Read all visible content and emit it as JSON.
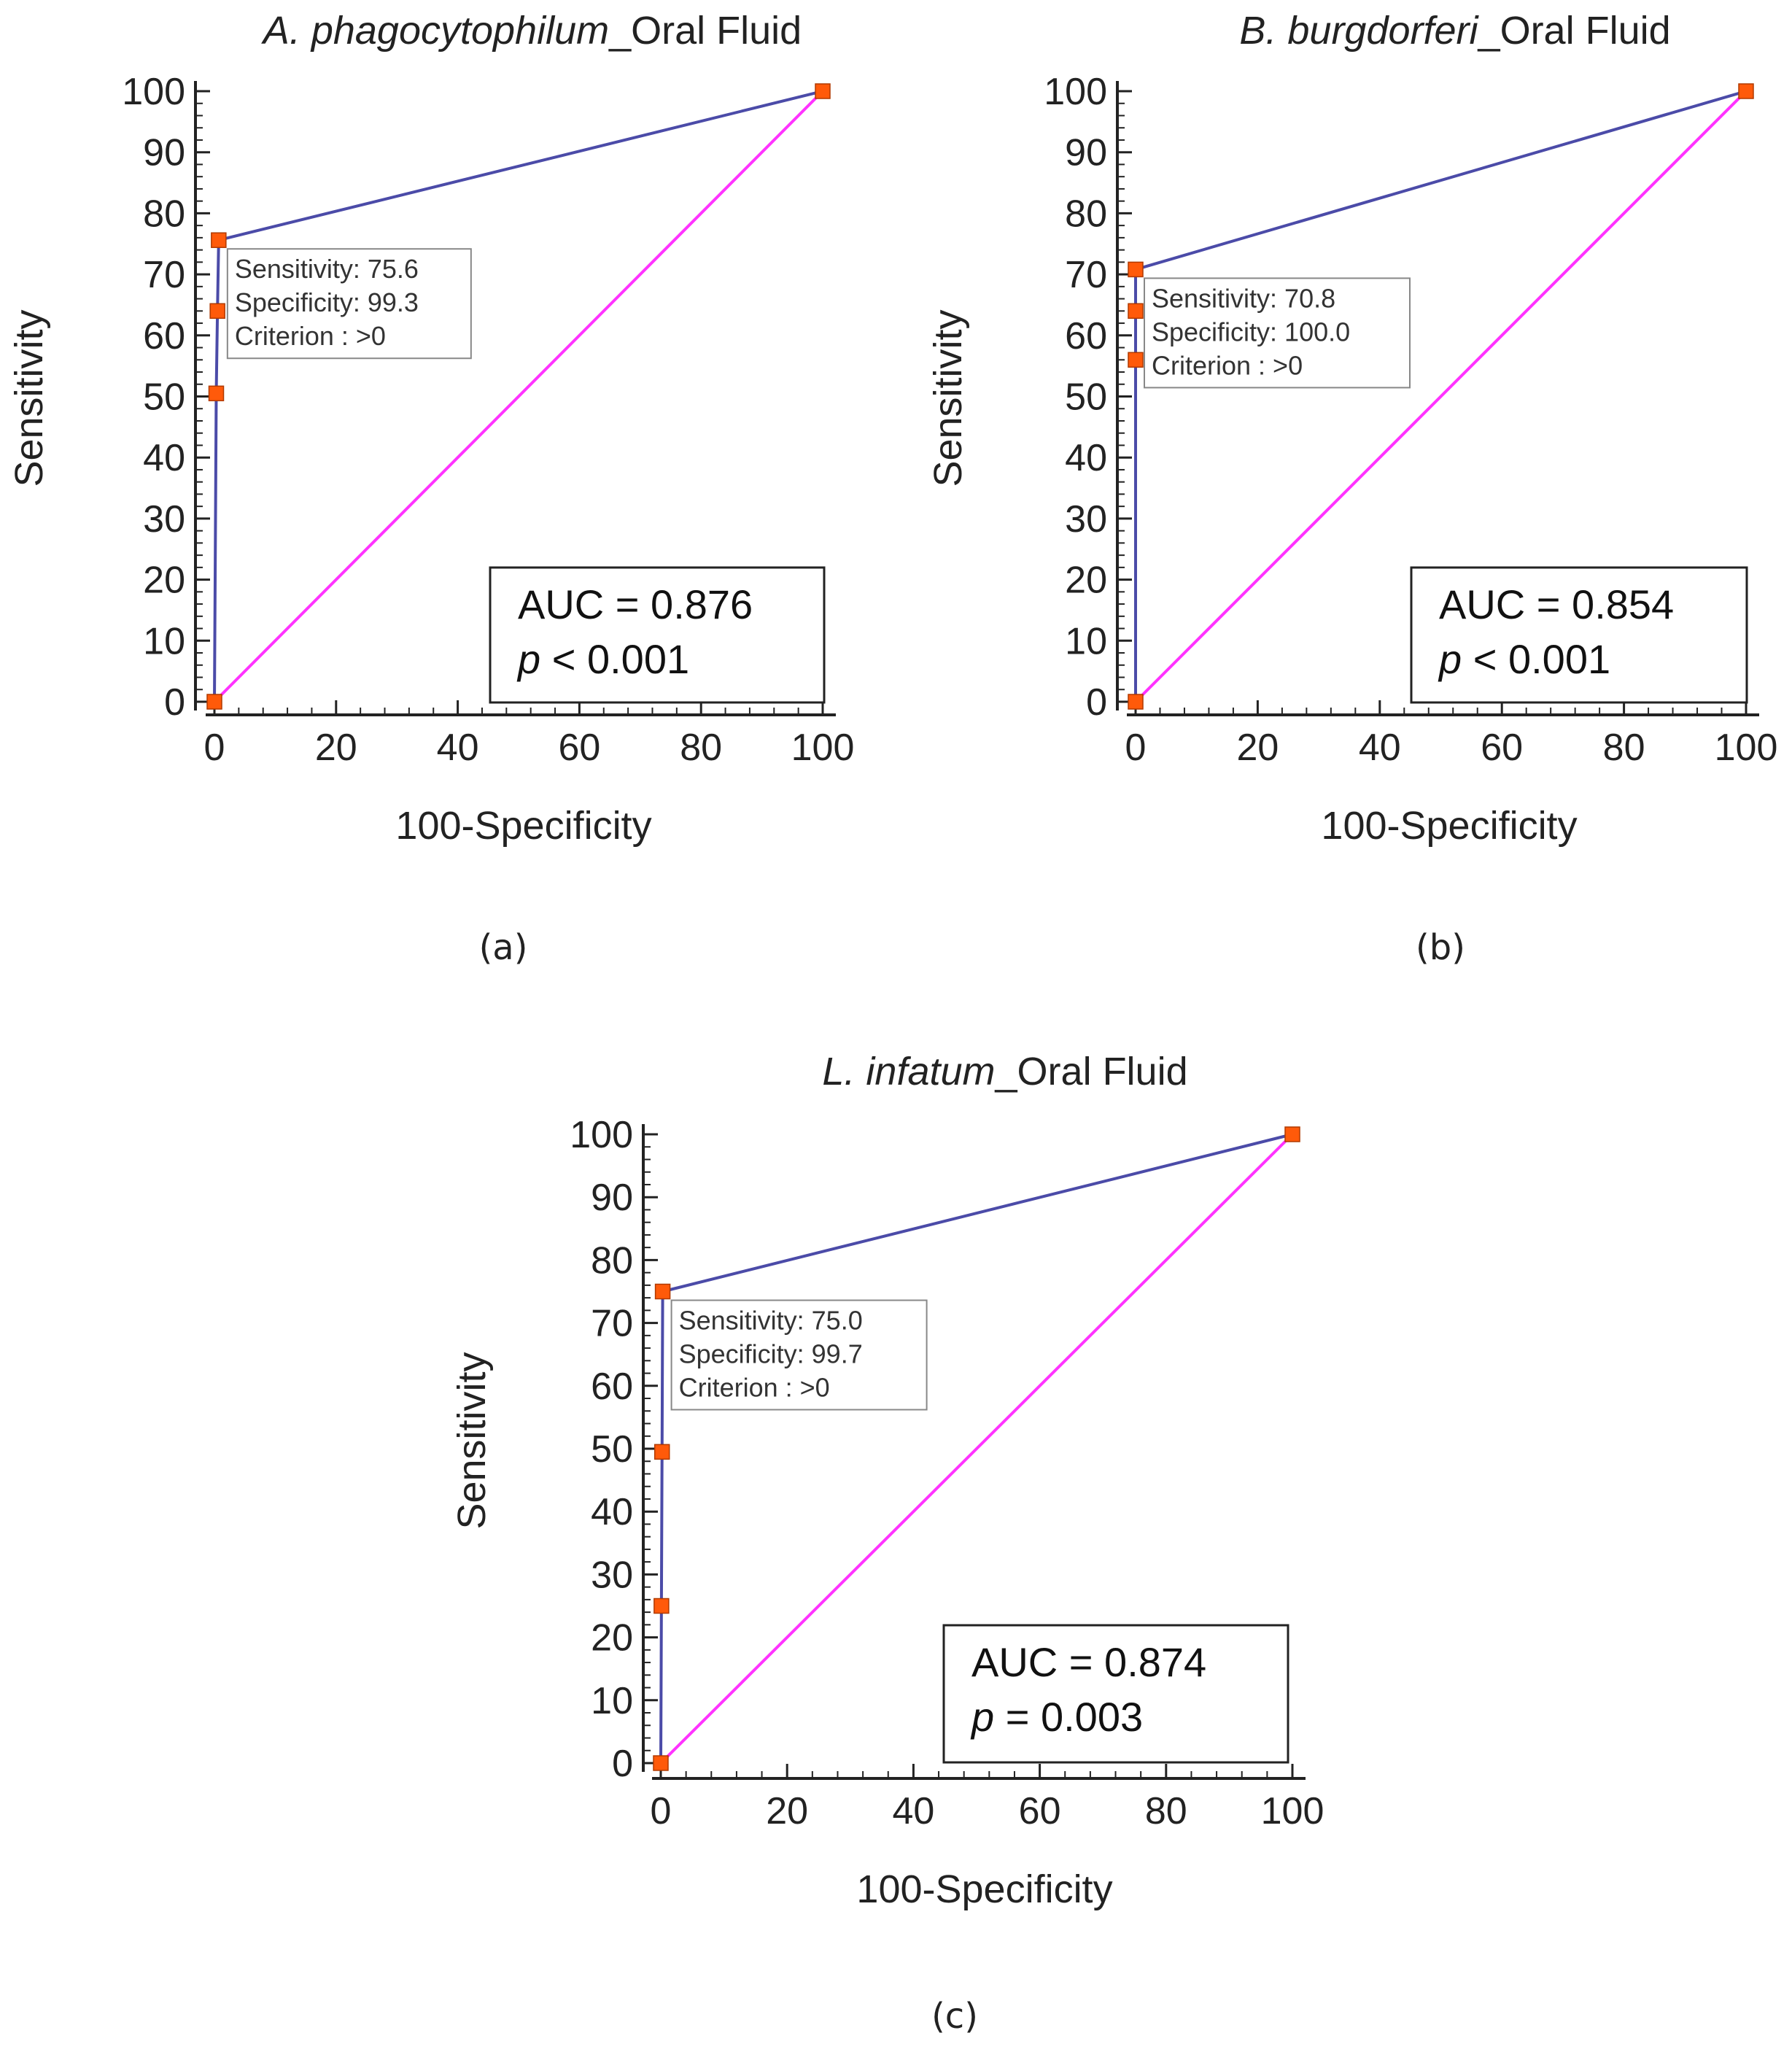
{
  "chart_data": [
    {
      "type": "line",
      "id": "a",
      "title_italic": "A. phagocytophilum",
      "title_rest": "_Oral Fluid",
      "caption": "(a)",
      "xlabel": "100-Specificity",
      "ylabel": "Sensitivity",
      "xlim": [
        0,
        100
      ],
      "ylim": [
        0,
        100
      ],
      "xticks": [
        "0",
        "20",
        "40",
        "60",
        "80",
        "100"
      ],
      "yticks": [
        "0",
        "10",
        "20",
        "30",
        "40",
        "50",
        "60",
        "70",
        "80",
        "90",
        "100"
      ],
      "roc": {
        "x": [
          0,
          0.3,
          0.5,
          0.7,
          100
        ],
        "y": [
          0,
          50.5,
          64.0,
          75.6,
          100
        ],
        "color": "#4B4BA8"
      },
      "reference": {
        "x": [
          0,
          100
        ],
        "y": [
          0,
          100
        ],
        "color": "#FF33FF"
      },
      "marker_color": "#FF5A0A",
      "annotation": [
        "Sensitivity: 75.6",
        "Specificity: 99.3",
        "Criterion : >0"
      ],
      "auc_label": "AUC = 0.876",
      "p_symbol": "p",
      "p_text": " < 0.001"
    },
    {
      "type": "line",
      "id": "b",
      "title_italic": "B. burgdorferi",
      "title_rest": "_Oral Fluid",
      "caption": "(b)",
      "xlabel": "100-Specificity",
      "ylabel": "Sensitivity",
      "xlim": [
        0,
        100
      ],
      "ylim": [
        0,
        100
      ],
      "xticks": [
        "0",
        "20",
        "40",
        "60",
        "80",
        "100"
      ],
      "yticks": [
        "0",
        "10",
        "20",
        "30",
        "40",
        "50",
        "60",
        "70",
        "80",
        "90",
        "100"
      ],
      "roc": {
        "x": [
          0,
          0,
          0,
          0,
          100
        ],
        "y": [
          0,
          56.0,
          64.0,
          70.8,
          100
        ],
        "color": "#4B4BA8"
      },
      "reference": {
        "x": [
          0,
          100
        ],
        "y": [
          0,
          100
        ],
        "color": "#FF33FF"
      },
      "marker_color": "#FF5A0A",
      "annotation": [
        "Sensitivity: 70.8",
        "Specificity: 100.0",
        "Criterion : >0"
      ],
      "auc_label": "AUC = 0.854",
      "p_symbol": "p",
      "p_text": " < 0.001"
    },
    {
      "type": "line",
      "id": "c",
      "title_italic": "L. infatum",
      "title_rest": "_Oral Fluid",
      "caption": "(c)",
      "xlabel": "100-Specificity",
      "ylabel": "Sensitivity",
      "xlim": [
        0,
        100
      ],
      "ylim": [
        0,
        100
      ],
      "xticks": [
        "0",
        "20",
        "40",
        "60",
        "80",
        "100"
      ],
      "yticks": [
        "0",
        "10",
        "20",
        "30",
        "40",
        "50",
        "60",
        "70",
        "80",
        "90",
        "100"
      ],
      "roc": {
        "x": [
          0,
          0.1,
          0.2,
          0.3,
          100
        ],
        "y": [
          0,
          25.0,
          49.5,
          75.0,
          100
        ],
        "color": "#4B4BA8"
      },
      "reference": {
        "x": [
          0,
          100
        ],
        "y": [
          0,
          100
        ],
        "color": "#FF33FF"
      },
      "marker_color": "#FF5A0A",
      "annotation": [
        "Sensitivity: 75.0",
        "Specificity: 99.7",
        "Criterion : >0"
      ],
      "auc_label": "AUC = 0.874",
      "p_symbol": "p",
      "p_text": " = 0.003"
    }
  ]
}
